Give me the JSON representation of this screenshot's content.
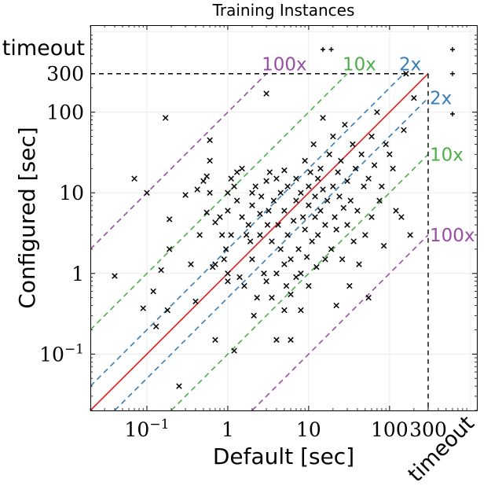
{
  "chart_data": {
    "type": "scatter",
    "title": "Training Instances",
    "xlabel": "Default [sec]",
    "ylabel": "Configured [sec]",
    "xscale": "log",
    "yscale": "log",
    "xlim": [
      0.02,
      1200
    ],
    "ylim": [
      0.02,
      1200
    ],
    "x_ticks": [
      {
        "value": 0.1,
        "base": "10",
        "exp": "−1"
      },
      {
        "value": 1,
        "text": "1"
      },
      {
        "value": 10,
        "text": "10"
      },
      {
        "value": 100,
        "text": "100"
      },
      {
        "value": 300,
        "text": "300"
      }
    ],
    "y_ticks": [
      {
        "value": 0.1,
        "base": "10",
        "exp": "−1"
      },
      {
        "value": 1,
        "text": "1"
      },
      {
        "value": 10,
        "text": "10"
      },
      {
        "value": 100,
        "text": "100"
      },
      {
        "value": 300,
        "text": "300"
      }
    ],
    "timeout_label": "timeout",
    "cutoff": 300,
    "timeout_value": 600,
    "grid": true,
    "reference_lines": [
      {
        "factor": 1,
        "label": "",
        "color": "#e41a1c",
        "style": "solid"
      },
      {
        "factor": 2,
        "label": "2x",
        "color": "#377eb8",
        "style": "dashed"
      },
      {
        "factor": 10,
        "label": "10x",
        "color": "#4daf4a",
        "style": "dashed"
      },
      {
        "factor": 100,
        "label": "100x",
        "color": "#984ea3",
        "style": "dashed"
      }
    ],
    "points": [
      [
        0.04,
        0.93
      ],
      [
        0.07,
        15
      ],
      [
        0.09,
        0.37
      ],
      [
        0.1,
        10
      ],
      [
        0.12,
        0.6
      ],
      [
        0.13,
        0.22
      ],
      [
        0.15,
        1.1
      ],
      [
        0.17,
        85
      ],
      [
        0.18,
        0.35
      ],
      [
        0.19,
        4.7
      ],
      [
        0.19,
        2
      ],
      [
        0.25,
        0.04
      ],
      [
        0.3,
        9.4
      ],
      [
        0.35,
        1.3
      ],
      [
        0.4,
        0.45
      ],
      [
        0.42,
        11
      ],
      [
        0.45,
        3
      ],
      [
        0.5,
        14
      ],
      [
        0.55,
        5.7
      ],
      [
        0.55,
        16
      ],
      [
        0.6,
        10
      ],
      [
        0.6,
        25
      ],
      [
        0.6,
        45
      ],
      [
        0.65,
        1.2
      ],
      [
        0.7,
        1.3
      ],
      [
        0.7,
        4.3
      ],
      [
        0.7,
        0.15
      ],
      [
        0.8,
        5
      ],
      [
        0.85,
        3
      ],
      [
        0.9,
        1.5
      ],
      [
        0.95,
        2
      ],
      [
        1,
        0.8
      ],
      [
        1,
        1
      ],
      [
        1,
        6
      ],
      [
        1,
        10
      ],
      [
        1.1,
        15
      ],
      [
        1.1,
        3
      ],
      [
        1.2,
        12
      ],
      [
        1.2,
        0.11
      ],
      [
        1.3,
        18
      ],
      [
        1.3,
        8
      ],
      [
        1.4,
        0.9
      ],
      [
        1.5,
        5
      ],
      [
        1.5,
        20
      ],
      [
        1.6,
        0.7
      ],
      [
        1.7,
        3
      ],
      [
        1.8,
        4
      ],
      [
        1.9,
        2.5
      ],
      [
        2,
        1.5
      ],
      [
        2,
        7
      ],
      [
        2,
        10
      ],
      [
        2.1,
        0.3
      ],
      [
        2.2,
        12
      ],
      [
        2.3,
        0.5
      ],
      [
        2.5,
        3
      ],
      [
        2.5,
        5.5
      ],
      [
        2.6,
        9
      ],
      [
        2.8,
        1
      ],
      [
        3,
        0.8
      ],
      [
        3,
        14
      ],
      [
        3,
        170
      ],
      [
        3.1,
        4
      ],
      [
        3.2,
        6
      ],
      [
        3.3,
        18
      ],
      [
        3.5,
        0.5
      ],
      [
        3.5,
        2.5
      ],
      [
        3.7,
        8
      ],
      [
        4,
        1
      ],
      [
        4,
        15
      ],
      [
        4,
        0.15
      ],
      [
        4.2,
        4
      ],
      [
        4.5,
        10
      ],
      [
        4.5,
        2
      ],
      [
        5,
        0.35
      ],
      [
        5,
        1.3
      ],
      [
        5,
        6
      ],
      [
        5,
        19
      ],
      [
        5.3,
        0.7
      ],
      [
        5.5,
        3
      ],
      [
        5.5,
        12
      ],
      [
        6,
        0.55
      ],
      [
        6,
        0.15
      ],
      [
        6,
        1.5
      ],
      [
        6.5,
        4.5
      ],
      [
        7,
        0.9
      ],
      [
        7,
        8
      ],
      [
        7,
        15
      ],
      [
        7.5,
        2
      ],
      [
        8,
        1
      ],
      [
        8,
        10
      ],
      [
        8,
        0.35
      ],
      [
        8.5,
        5
      ],
      [
        9,
        25
      ],
      [
        9,
        3.5
      ],
      [
        9.5,
        1.6
      ],
      [
        10,
        7
      ],
      [
        10,
        12
      ],
      [
        10,
        0.7
      ],
      [
        10.5,
        18
      ],
      [
        11,
        2.5
      ],
      [
        11.5,
        40
      ],
      [
        12,
        5
      ],
      [
        12,
        9
      ],
      [
        12.5,
        1.2
      ],
      [
        13,
        3
      ],
      [
        13,
        15
      ],
      [
        14,
        20
      ],
      [
        14,
        6
      ],
      [
        15,
        85
      ],
      [
        15,
        11
      ],
      [
        16,
        1.5
      ],
      [
        16,
        4
      ],
      [
        17,
        8
      ],
      [
        18,
        30
      ],
      [
        19,
        2
      ],
      [
        20,
        12
      ],
      [
        20,
        50
      ],
      [
        21,
        5
      ],
      [
        22,
        0.4
      ],
      [
        22,
        3.5
      ],
      [
        23,
        18
      ],
      [
        24,
        9
      ],
      [
        25,
        25
      ],
      [
        26,
        1.5
      ],
      [
        27,
        6.5
      ],
      [
        28,
        70
      ],
      [
        30,
        4
      ],
      [
        30,
        14
      ],
      [
        32,
        0.7
      ],
      [
        33,
        8
      ],
      [
        35,
        40
      ],
      [
        36,
        2.5
      ],
      [
        38,
        20
      ],
      [
        40,
        6
      ],
      [
        42,
        1.3
      ],
      [
        45,
        30
      ],
      [
        48,
        12
      ],
      [
        50,
        3
      ],
      [
        55,
        15
      ],
      [
        55,
        0.5
      ],
      [
        60,
        50
      ],
      [
        60,
        5
      ],
      [
        65,
        22
      ],
      [
        70,
        100
      ],
      [
        75,
        8
      ],
      [
        80,
        12
      ],
      [
        85,
        2.2
      ],
      [
        90,
        40
      ],
      [
        100,
        30
      ],
      [
        110,
        20
      ],
      [
        120,
        6
      ],
      [
        140,
        5
      ],
      [
        150,
        60
      ],
      [
        160,
        300
      ],
      [
        180,
        3
      ],
      [
        200,
        150
      ]
    ],
    "timeout_points_x": [
      [
        15,
        600
      ],
      [
        19,
        600
      ]
    ],
    "timeout_points_y": [
      [
        600,
        600
      ],
      [
        600,
        300
      ],
      [
        600,
        95
      ]
    ]
  }
}
